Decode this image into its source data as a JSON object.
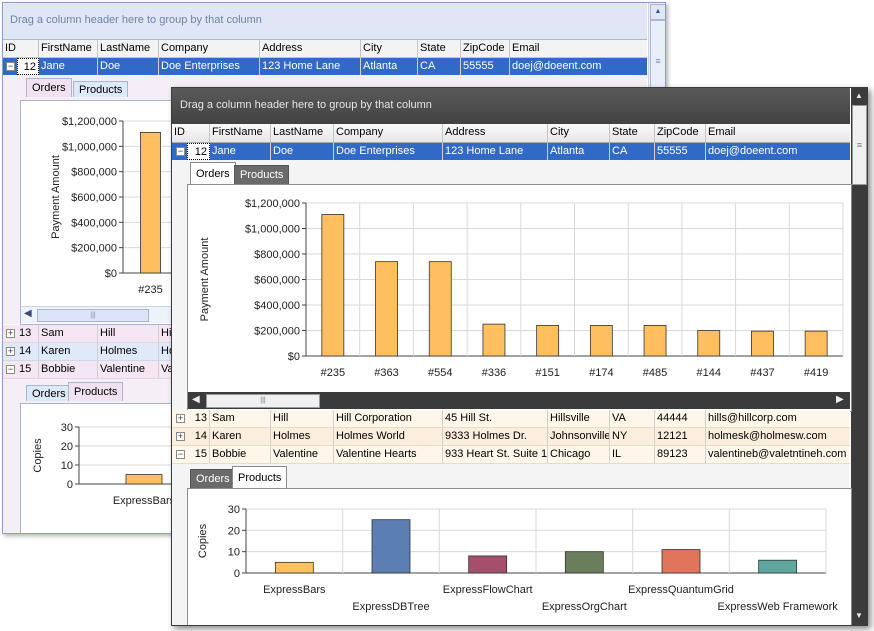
{
  "group_panel_text": "Drag a column header here to group by that column",
  "columns": [
    "ID",
    "FirstName",
    "LastName",
    "Company",
    "Address",
    "City",
    "State",
    "ZipCode",
    "Email"
  ],
  "rows": [
    {
      "id": "12",
      "first": "Jane",
      "last": "Doe",
      "company": "Doe Enterprises",
      "address": "123 Home Lane",
      "city": "Atlanta",
      "state": "CA",
      "zip": "55555",
      "email": "doej@doeent.com"
    },
    {
      "id": "13",
      "first": "Sam",
      "last": "Hill",
      "company": "Hill Corporation",
      "address": "45 Hill St.",
      "city": "Hillsville",
      "state": "VA",
      "zip": "44444",
      "email": "hills@hillcorp.com"
    },
    {
      "id": "14",
      "first": "Karen",
      "last": "Holmes",
      "company": "Holmes World",
      "address": "9333 Holmes Dr.",
      "city": "Johnsonville",
      "state": "NY",
      "zip": "12121",
      "email": "holmesk@holmesw.com"
    },
    {
      "id": "15",
      "first": "Bobbie",
      "last": "Valentine",
      "company": "Valentine Hearts",
      "address": "933 Heart St. Suite 1",
      "city": "Chicago",
      "state": "IL",
      "zip": "89123",
      "email": "valentineb@valetntineh.com"
    }
  ],
  "back_partial": {
    "company_13": "Hil",
    "company_14": "Ho",
    "company_15": "Va"
  },
  "tabs": {
    "orders": "Orders",
    "products": "Products"
  },
  "expander": {
    "collapsed": "+",
    "expanded": "−"
  },
  "scroll_glyphs": {
    "up": "▲",
    "down": "▼",
    "left": "◀",
    "right": "▶",
    "grip": "≡",
    "grip_h": "|||"
  },
  "colors": {
    "selected_row": "#3169c6",
    "bar_orange": "#ffbf5f",
    "dark_header": "#4a4a4a"
  },
  "chart_data": [
    {
      "type": "bar",
      "title": "",
      "ylabel": "Payment Amount",
      "categories": [
        "#235",
        "#363",
        "#554",
        "#336",
        "#151",
        "#174",
        "#485",
        "#144",
        "#437",
        "#419"
      ],
      "values": [
        1110000,
        740000,
        740000,
        250000,
        240000,
        240000,
        240000,
        200000,
        195000,
        195000
      ],
      "ylim": [
        0,
        1200000
      ],
      "yticks": [
        "$0",
        "$200,000",
        "$400,000",
        "$600,000",
        "$800,000",
        "$1,000,000",
        "$1,200,000"
      ],
      "grid": true
    },
    {
      "type": "bar",
      "title": "",
      "ylabel": "Copies",
      "categories": [
        "ExpressBars",
        "ExpressDBTree",
        "ExpressFlowChart",
        "ExpressOrgChart",
        "ExpressQuantumGrid",
        "ExpressWeb Framework"
      ],
      "values": [
        5,
        25,
        8,
        10,
        11,
        6
      ],
      "ylim": [
        0,
        30
      ],
      "yticks": [
        "0",
        "10",
        "20",
        "30"
      ],
      "colors": [
        "#ffbf5f",
        "#5b7fb3",
        "#a4506c",
        "#6a7d5c",
        "#e0755a",
        "#5fa79e"
      ],
      "grid": true
    }
  ]
}
